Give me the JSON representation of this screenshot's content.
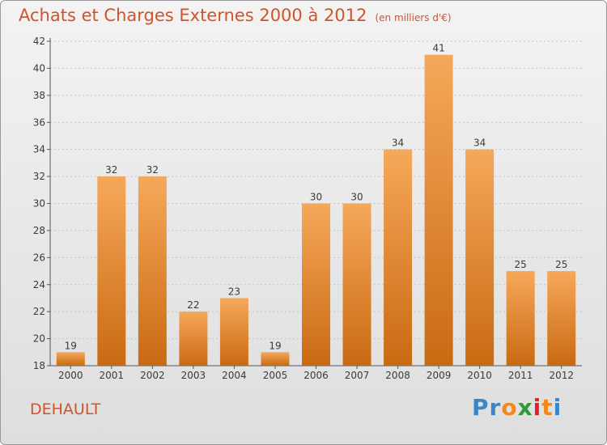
{
  "header": {
    "title": "Achats et Charges Externes 2000 à 2012",
    "unit": "(en milliers d'€)"
  },
  "footer": {
    "commune": "DEHAULT",
    "logo_letters": [
      {
        "ch": "P",
        "color": "#3a86c8"
      },
      {
        "ch": "r",
        "color": "#3a86c8"
      },
      {
        "ch": "o",
        "color": "#f08a1c"
      },
      {
        "ch": "x",
        "color": "#2e9a3a"
      },
      {
        "ch": "i",
        "color": "#e0222a"
      },
      {
        "ch": "t",
        "color": "#f08a1c"
      },
      {
        "ch": "i",
        "color": "#3a86c8"
      }
    ]
  },
  "colors": {
    "bar_light": "#f6a85a",
    "bar_dark": "#c96a12",
    "label": "#3a3a3a"
  },
  "chart_data": {
    "type": "bar",
    "title": "Achats et Charges Externes 2000 à 2012",
    "subtitle": "(en milliers d'€)",
    "categories": [
      "2000",
      "2001",
      "2002",
      "2003",
      "2004",
      "2005",
      "2006",
      "2007",
      "2008",
      "2009",
      "2010",
      "2011",
      "2012"
    ],
    "values": [
      19,
      32,
      32,
      22,
      23,
      19,
      30,
      30,
      34,
      41,
      34,
      25,
      25
    ],
    "ylim": [
      18,
      42
    ],
    "yticks": [
      18,
      20,
      22,
      24,
      26,
      28,
      30,
      32,
      34,
      36,
      38,
      40,
      42
    ],
    "xlabel": "",
    "ylabel": "",
    "grid": "horizontal dashed",
    "legend": "none"
  }
}
